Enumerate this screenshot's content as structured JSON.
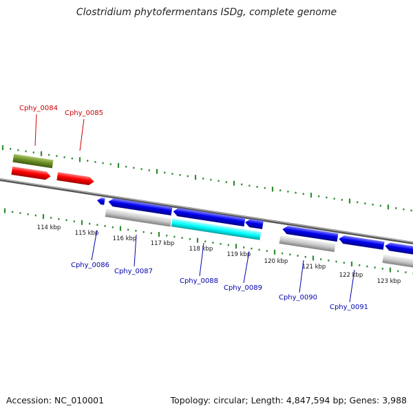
{
  "title": "Clostridium phytofermentans ISDg, complete genome",
  "footer": {
    "accession": "Accession: NC_010001",
    "info": "Topology: circular; Length: 4,847,594 bp; Genes: 3,988"
  },
  "colors": {
    "forward_label": "#cc0000",
    "reverse_label": "#0000aa",
    "tick": "#2e8b2e",
    "backbone": "#777777"
  },
  "scale": {
    "kbp_labels": [
      "114 kbp",
      "115 kbp",
      "116 kbp",
      "117 kbp",
      "118 kbp",
      "119 kbp",
      "120 kbp",
      "121 kbp",
      "122 kbp",
      "123 kbp"
    ]
  },
  "genes": {
    "labeled": [
      {
        "name": "Cphy_0084",
        "strand": "forward"
      },
      {
        "name": "Cphy_0085",
        "strand": "forward"
      },
      {
        "name": "Cphy_0086",
        "strand": "reverse"
      },
      {
        "name": "Cphy_0087",
        "strand": "reverse"
      },
      {
        "name": "Cphy_0088",
        "strand": "reverse"
      },
      {
        "name": "Cphy_0089",
        "strand": "reverse"
      },
      {
        "name": "Cphy_0090",
        "strand": "reverse"
      },
      {
        "name": "Cphy_0091",
        "strand": "reverse"
      }
    ]
  }
}
